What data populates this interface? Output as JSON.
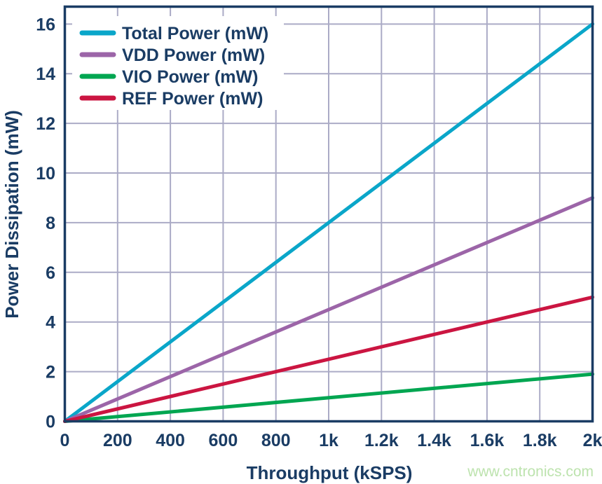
{
  "figure": {
    "watermark": {
      "text": "www.cntronics.com",
      "color": "#BDE3AE"
    }
  },
  "chart_data": {
    "type": "line",
    "title": "",
    "xlabel": "Throughput (kSPS)",
    "ylabel": "Power Dissipation (mW)",
    "xlim": [
      0,
      2000
    ],
    "ylim": [
      0,
      16.7
    ],
    "grid": true,
    "legend_position": "top-left",
    "x_ticks": [
      {
        "value": 0,
        "label": "0"
      },
      {
        "value": 200,
        "label": "200"
      },
      {
        "value": 400,
        "label": "400"
      },
      {
        "value": 600,
        "label": "600"
      },
      {
        "value": 800,
        "label": "800"
      },
      {
        "value": 1000,
        "label": "1k"
      },
      {
        "value": 1200,
        "label": "1.2k"
      },
      {
        "value": 1400,
        "label": "1.4k"
      },
      {
        "value": 1600,
        "label": "1.6k"
      },
      {
        "value": 1800,
        "label": "1.8k"
      },
      {
        "value": 2000,
        "label": "2k"
      }
    ],
    "y_ticks": [
      {
        "value": 0,
        "label": "0"
      },
      {
        "value": 2,
        "label": "2"
      },
      {
        "value": 4,
        "label": "4"
      },
      {
        "value": 6,
        "label": "6"
      },
      {
        "value": 8,
        "label": "8"
      },
      {
        "value": 10,
        "label": "10"
      },
      {
        "value": 12,
        "label": "12"
      },
      {
        "value": 14,
        "label": "14"
      },
      {
        "value": 16,
        "label": "16"
      }
    ],
    "series": [
      {
        "name": "Total Power (mW)",
        "color": "#0AA6C9",
        "points": [
          [
            0,
            0
          ],
          [
            2000,
            16.0
          ]
        ]
      },
      {
        "name": "VDD Power (mW)",
        "color": "#9C65A8",
        "points": [
          [
            0,
            0
          ],
          [
            2000,
            9.0
          ]
        ]
      },
      {
        "name": "VIO Power (mW)",
        "color": "#00A651",
        "points": [
          [
            0,
            0
          ],
          [
            2000,
            1.9
          ]
        ]
      },
      {
        "name": "REF Power (mW)",
        "color": "#CB1541",
        "points": [
          [
            0,
            0
          ],
          [
            2000,
            5.0
          ]
        ]
      }
    ],
    "colors": {
      "axis_border": "#1A3C64",
      "grid": "#ABABC6",
      "text": "#1A3C64",
      "plot_background": "#FFFFFF",
      "page_background": "#FFFFFF"
    }
  }
}
